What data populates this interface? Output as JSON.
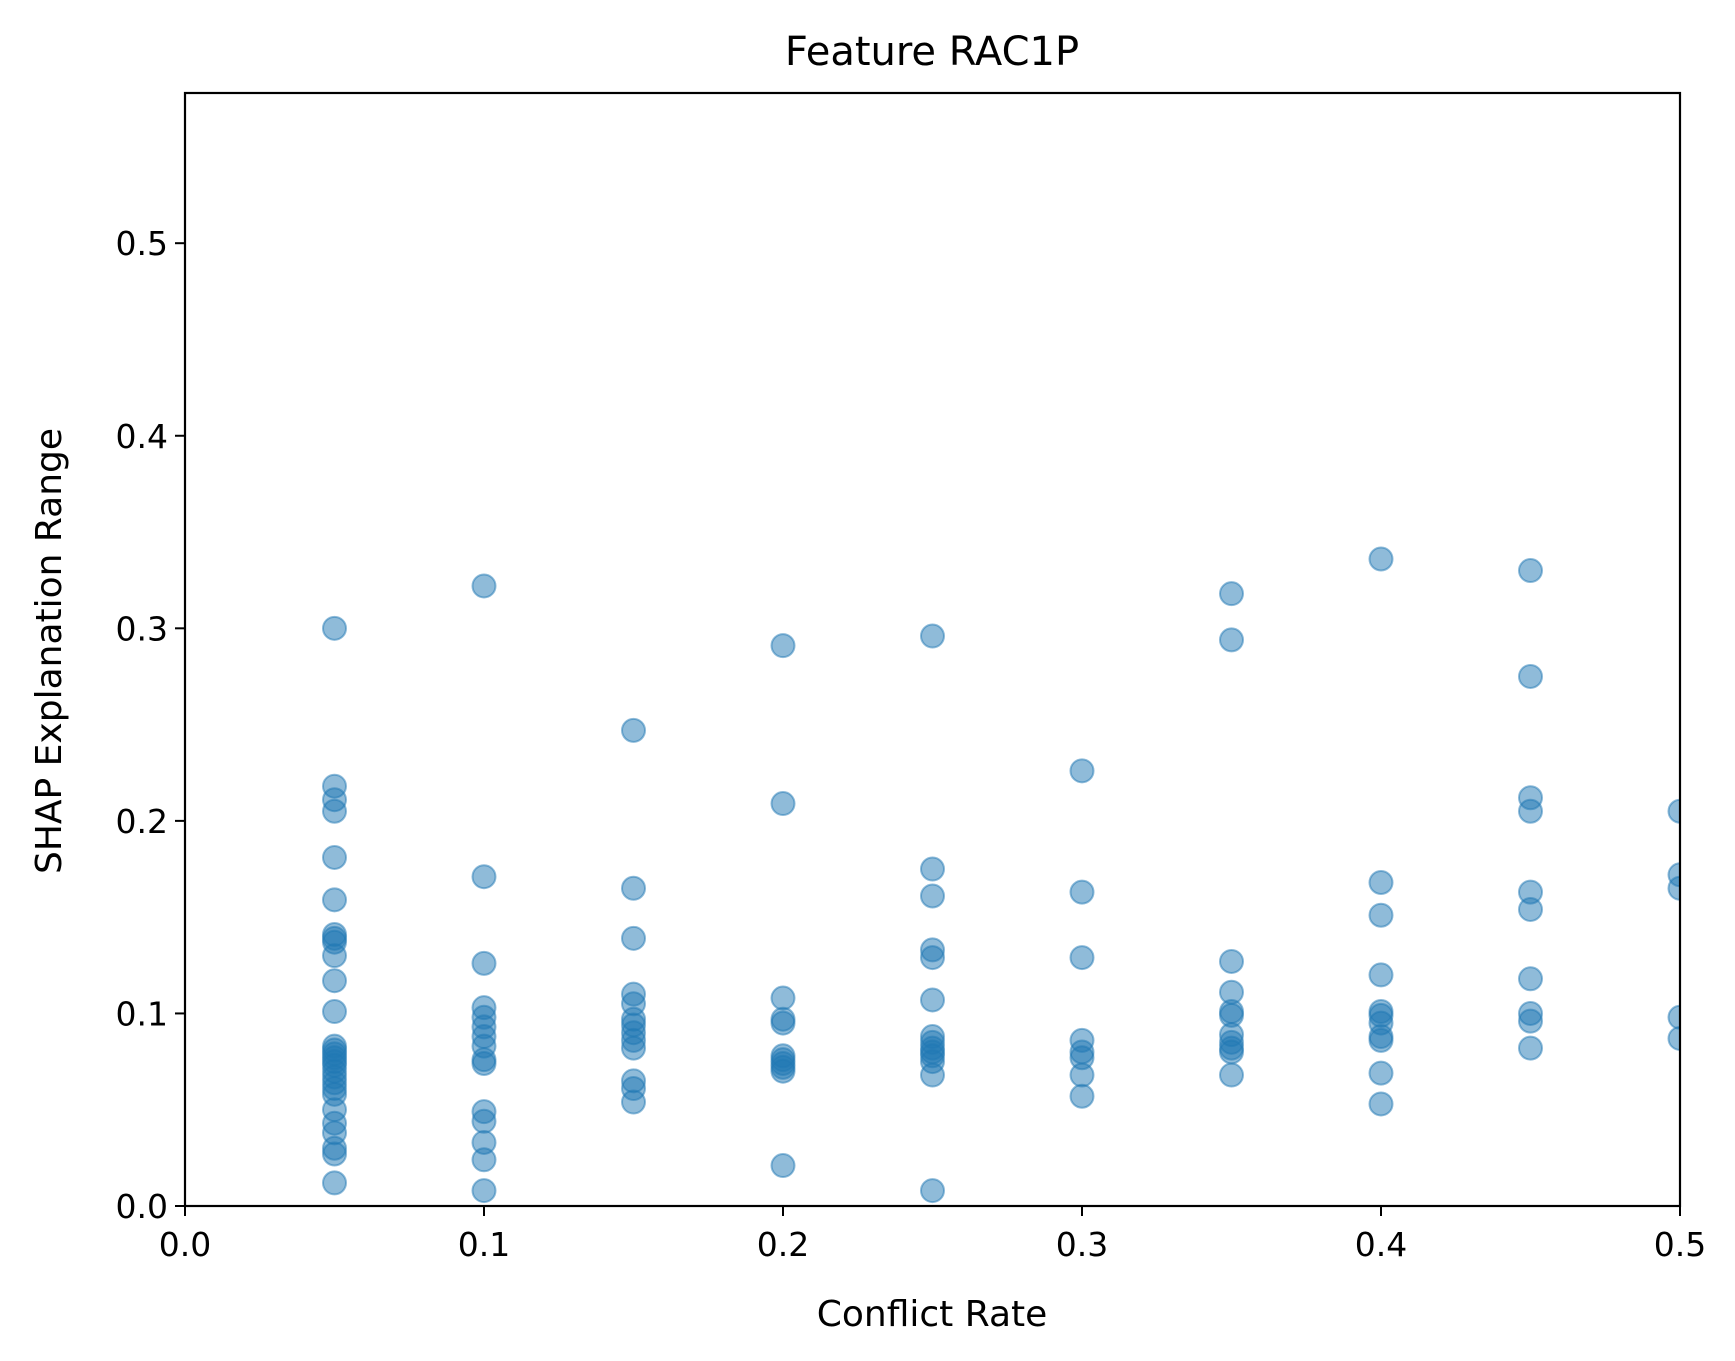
{
  "chart_data": {
    "type": "scatter",
    "title": "Feature RAC1P",
    "xlabel": "Conflict Rate",
    "ylabel": "SHAP Explanation Range",
    "xlim": [
      0.0,
      0.5
    ],
    "ylim": [
      0.0,
      0.578
    ],
    "xticks": [
      "0.0",
      "0.1",
      "0.2",
      "0.3",
      "0.4",
      "0.5"
    ],
    "yticks": [
      "0.0",
      "0.1",
      "0.2",
      "0.3",
      "0.4",
      "0.5"
    ],
    "grid": false,
    "color": "#1f77b4",
    "points": [
      [
        0.05,
        0.3
      ],
      [
        0.05,
        0.218
      ],
      [
        0.05,
        0.211
      ],
      [
        0.05,
        0.205
      ],
      [
        0.05,
        0.181
      ],
      [
        0.05,
        0.159
      ],
      [
        0.05,
        0.141
      ],
      [
        0.05,
        0.139
      ],
      [
        0.05,
        0.137
      ],
      [
        0.05,
        0.13
      ],
      [
        0.05,
        0.117
      ],
      [
        0.05,
        0.101
      ],
      [
        0.05,
        0.083
      ],
      [
        0.05,
        0.081
      ],
      [
        0.05,
        0.079
      ],
      [
        0.05,
        0.077
      ],
      [
        0.05,
        0.075
      ],
      [
        0.05,
        0.073
      ],
      [
        0.05,
        0.07
      ],
      [
        0.05,
        0.067
      ],
      [
        0.05,
        0.064
      ],
      [
        0.05,
        0.061
      ],
      [
        0.05,
        0.058
      ],
      [
        0.05,
        0.05
      ],
      [
        0.05,
        0.043
      ],
      [
        0.05,
        0.038
      ],
      [
        0.05,
        0.03
      ],
      [
        0.05,
        0.027
      ],
      [
        0.05,
        0.012
      ],
      [
        0.1,
        0.322
      ],
      [
        0.1,
        0.171
      ],
      [
        0.1,
        0.126
      ],
      [
        0.1,
        0.103
      ],
      [
        0.1,
        0.098
      ],
      [
        0.1,
        0.093
      ],
      [
        0.1,
        0.088
      ],
      [
        0.1,
        0.083
      ],
      [
        0.1,
        0.076
      ],
      [
        0.1,
        0.074
      ],
      [
        0.1,
        0.049
      ],
      [
        0.1,
        0.044
      ],
      [
        0.1,
        0.033
      ],
      [
        0.1,
        0.024
      ],
      [
        0.1,
        0.008
      ],
      [
        0.15,
        0.247
      ],
      [
        0.15,
        0.165
      ],
      [
        0.15,
        0.139
      ],
      [
        0.15,
        0.11
      ],
      [
        0.15,
        0.105
      ],
      [
        0.15,
        0.097
      ],
      [
        0.15,
        0.094
      ],
      [
        0.15,
        0.09
      ],
      [
        0.15,
        0.086
      ],
      [
        0.15,
        0.082
      ],
      [
        0.15,
        0.065
      ],
      [
        0.15,
        0.061
      ],
      [
        0.15,
        0.054
      ],
      [
        0.2,
        0.291
      ],
      [
        0.2,
        0.209
      ],
      [
        0.2,
        0.108
      ],
      [
        0.2,
        0.097
      ],
      [
        0.2,
        0.095
      ],
      [
        0.2,
        0.078
      ],
      [
        0.2,
        0.076
      ],
      [
        0.2,
        0.074
      ],
      [
        0.2,
        0.072
      ],
      [
        0.2,
        0.07
      ],
      [
        0.2,
        0.021
      ],
      [
        0.25,
        0.296
      ],
      [
        0.25,
        0.175
      ],
      [
        0.25,
        0.161
      ],
      [
        0.25,
        0.133
      ],
      [
        0.25,
        0.129
      ],
      [
        0.25,
        0.107
      ],
      [
        0.25,
        0.088
      ],
      [
        0.25,
        0.085
      ],
      [
        0.25,
        0.082
      ],
      [
        0.25,
        0.08
      ],
      [
        0.25,
        0.078
      ],
      [
        0.25,
        0.075
      ],
      [
        0.25,
        0.068
      ],
      [
        0.25,
        0.008
      ],
      [
        0.3,
        0.226
      ],
      [
        0.3,
        0.163
      ],
      [
        0.3,
        0.129
      ],
      [
        0.3,
        0.086
      ],
      [
        0.3,
        0.08
      ],
      [
        0.3,
        0.077
      ],
      [
        0.3,
        0.068
      ],
      [
        0.3,
        0.057
      ],
      [
        0.35,
        0.318
      ],
      [
        0.35,
        0.294
      ],
      [
        0.35,
        0.127
      ],
      [
        0.35,
        0.111
      ],
      [
        0.35,
        0.101
      ],
      [
        0.35,
        0.099
      ],
      [
        0.35,
        0.089
      ],
      [
        0.35,
        0.085
      ],
      [
        0.35,
        0.082
      ],
      [
        0.35,
        0.08
      ],
      [
        0.35,
        0.068
      ],
      [
        0.4,
        0.336
      ],
      [
        0.4,
        0.168
      ],
      [
        0.4,
        0.151
      ],
      [
        0.4,
        0.12
      ],
      [
        0.4,
        0.101
      ],
      [
        0.4,
        0.099
      ],
      [
        0.4,
        0.095
      ],
      [
        0.4,
        0.088
      ],
      [
        0.4,
        0.086
      ],
      [
        0.4,
        0.069
      ],
      [
        0.4,
        0.053
      ],
      [
        0.45,
        0.33
      ],
      [
        0.45,
        0.275
      ],
      [
        0.45,
        0.212
      ],
      [
        0.45,
        0.205
      ],
      [
        0.45,
        0.163
      ],
      [
        0.45,
        0.154
      ],
      [
        0.45,
        0.118
      ],
      [
        0.45,
        0.1
      ],
      [
        0.45,
        0.096
      ],
      [
        0.45,
        0.082
      ],
      [
        0.5,
        0.205
      ],
      [
        0.5,
        0.172
      ],
      [
        0.5,
        0.165
      ],
      [
        0.5,
        0.098
      ],
      [
        0.5,
        0.087
      ]
    ]
  }
}
